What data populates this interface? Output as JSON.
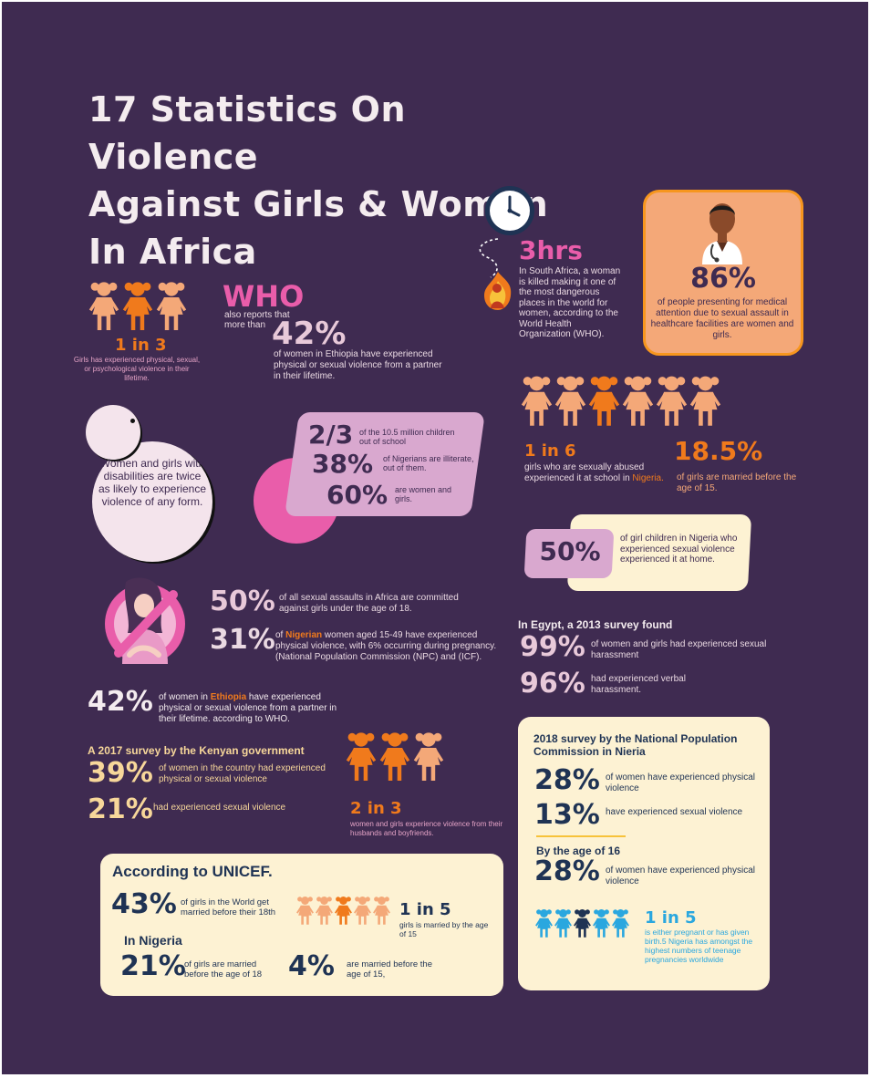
{
  "title": [
    "17 Statistics On Violence",
    "Against Girls & Women",
    "In Africa"
  ],
  "colors": {
    "background": "#3f2b51",
    "orange": "#f07a1c",
    "peach": "#f4a878",
    "pink": "#e95daa",
    "lilac": "#d9a8cf",
    "cream": "#fdf2d3",
    "navy": "#1f3354",
    "blue": "#2aa7df",
    "light": "#f4ecef"
  },
  "icons": [
    "girl-figure-icon",
    "clock-icon",
    "woman-in-fire-icon",
    "doctor-icon",
    "sad-woman-icon"
  ],
  "s1": {
    "stat": "1 in 3",
    "text": "Girls has experienced physical, sexual, or psychological violence in their lifetime."
  },
  "who": {
    "label": "WHO",
    "intro": "also reports that more than",
    "stat": "42%",
    "text": "of women in Ethiopia have experienced physical or sexual violence from a partner in their lifetime."
  },
  "hrs": {
    "stat": "3hrs",
    "text": "In South Africa, a woman is killed making it one of the most dangerous places in the world for women, according to the World Health Organization (WHO)."
  },
  "doctor": {
    "stat": "86%",
    "text": "of people presenting for medical attention due to sexual assault in healthcare facilities are women and girls."
  },
  "disability": {
    "text": "Women and girls with disabilities are twice as likely to experience violence of any form."
  },
  "school": {
    "s1": {
      "stat": "2/3",
      "text": "of the 10.5 million children out of school"
    },
    "s2": {
      "stat": "38%",
      "text": "of Nigerians are illiterate, out of them."
    },
    "s3": {
      "stat": "60%",
      "text": "are women and girls."
    }
  },
  "abuse": {
    "stat": "1 in 6",
    "text": "girls who are sexually abused experienced it at school in ",
    "country": "Nigeria."
  },
  "married15": {
    "stat": "18.5%",
    "text": "of girls are married before the age of 15."
  },
  "home": {
    "stat": "50%",
    "text": "of girl children in Nigeria who experienced sexual violence experienced it at home."
  },
  "assault": {
    "s1": {
      "stat": "50%",
      "text": "of all sexual assaults in Africa are committed against girls under the age of 18."
    },
    "s2": {
      "stat": "31%",
      "pre": "of ",
      "country": "Nigerian",
      "text": " women aged 15-49 have experienced physical violence, with 6% occurring during pregnancy. (National Population Commission (NPC) and (ICF)."
    }
  },
  "egypt": {
    "heading": "In Egypt, a 2013 survey found",
    "s1": {
      "stat": "99%",
      "text": "of women and girls had experienced sexual harassment"
    },
    "s2": {
      "stat": "96%",
      "text": "had experienced verbal harassment."
    }
  },
  "ethiopia": {
    "stat": "42%",
    "pre": "of women in ",
    "country": "Ethiopia",
    "text": " have experienced physical or sexual violence from a partner in their lifetime. according to WHO."
  },
  "kenya": {
    "heading": "A 2017 survey by the Kenyan government",
    "s1": {
      "stat": "39%",
      "text": "of women in the country had experienced physical or sexual violence"
    },
    "s2": {
      "stat": "21%",
      "text": "had experienced sexual violence"
    }
  },
  "husband": {
    "stat": "2 in 3",
    "text": "women and girls experience violence from their husbands and boyfriends."
  },
  "npc": {
    "heading": "2018 survey by the National Population Commission in Nieria",
    "s1": {
      "stat": "28%",
      "text": "of women have experienced physical violence"
    },
    "s2": {
      "stat": "13%",
      "text": "have experienced sexual violence"
    },
    "age_heading": "By the age of 16",
    "s3": {
      "stat": "28%",
      "text": "of women have experienced physical violence"
    },
    "s4": {
      "stat": "1 in 5",
      "text": "is either pregnant or has given birth.5 Nigeria has amongst the highest numbers of teenage pregnancies worldwide"
    }
  },
  "unicef": {
    "heading": "According to UNICEF.",
    "s1": {
      "stat": "43%",
      "text": "of girls in the World get married before their 18th"
    },
    "s2": {
      "stat": "1 in 5",
      "text": "girls is married by the age of 15"
    },
    "sub": "In Nigeria",
    "s3": {
      "stat": "21%",
      "text": "of girls are married before the age of 18"
    },
    "s4": {
      "stat": "4%",
      "text": "are married before the age of 15,"
    }
  }
}
